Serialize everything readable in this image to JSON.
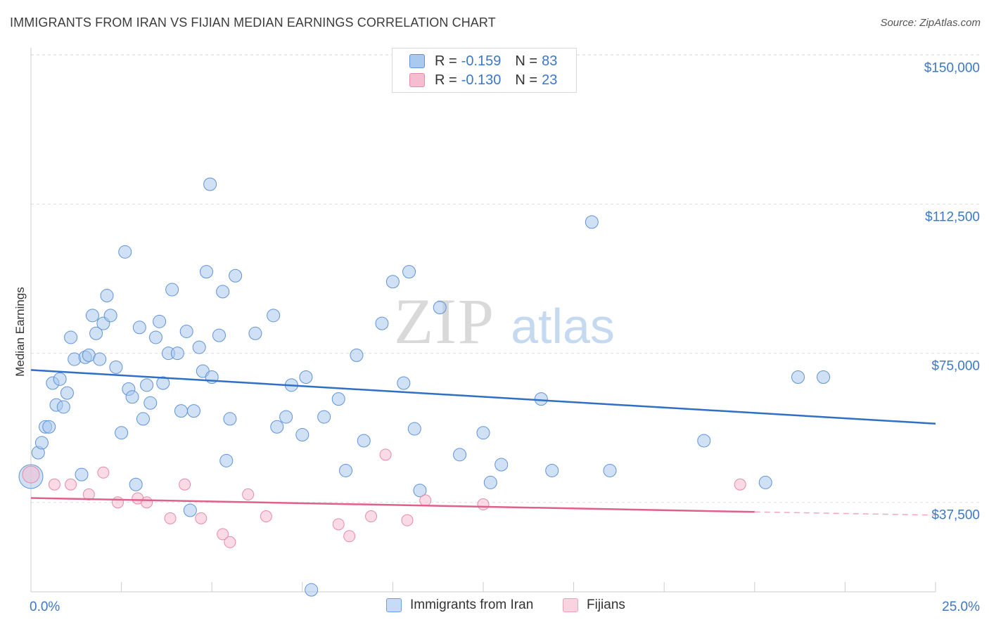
{
  "title": "IMMIGRANTS FROM IRAN VS FIJIAN MEDIAN EARNINGS CORRELATION CHART",
  "source": "Source: ZipAtlas.com",
  "watermark": {
    "zip": "ZIP",
    "atlas": "atlas"
  },
  "legend": {
    "r_label": "R =",
    "n_label": "N =",
    "rows": [
      {
        "r": "-0.159",
        "n": "83",
        "color": "#a9c9ef",
        "border": "#5f93d6"
      },
      {
        "r": "-0.130",
        "n": "23",
        "color": "#f6bdd0",
        "border": "#e58aab"
      }
    ]
  },
  "bottom_legend": [
    "Immigrants from Iran",
    "Fijians"
  ],
  "chart_data": {
    "type": "scatter",
    "ylabel": "Median Earnings",
    "xlim": [
      0,
      25
    ],
    "ylim": [
      15000,
      155000
    ],
    "x_tick_labels": [
      {
        "value": 0,
        "label": "0.0%"
      },
      {
        "value": 25,
        "label": "25.0%"
      }
    ],
    "y_ticks": [
      {
        "value": 37500,
        "label": "$37,500"
      },
      {
        "value": 75000,
        "label": "$75,000"
      },
      {
        "value": 112500,
        "label": "$112,500"
      },
      {
        "value": 150000,
        "label": "$150,000"
      }
    ],
    "series": [
      {
        "name": "Immigrants from Iran",
        "color": "#a9c9ef",
        "stroke": "#5f93d6",
        "trend": {
          "x0": 0,
          "y0": 70800,
          "x1": 25,
          "y1": 57300,
          "color": "#2f6fc4"
        },
        "points": [
          [
            0.0,
            44000
          ],
          [
            0.2,
            50000
          ],
          [
            0.3,
            52500
          ],
          [
            0.4,
            56500
          ],
          [
            0.5,
            56500
          ],
          [
            0.6,
            67500
          ],
          [
            0.7,
            62000
          ],
          [
            0.8,
            68500
          ],
          [
            0.9,
            61500
          ],
          [
            1.0,
            65000
          ],
          [
            1.1,
            79000
          ],
          [
            1.2,
            73500
          ],
          [
            1.4,
            44500
          ],
          [
            1.5,
            74000
          ],
          [
            1.6,
            74500
          ],
          [
            1.7,
            84500
          ],
          [
            1.8,
            80000
          ],
          [
            1.9,
            73500
          ],
          [
            2.0,
            82500
          ],
          [
            2.1,
            89500
          ],
          [
            2.2,
            84500
          ],
          [
            2.35,
            71500
          ],
          [
            2.5,
            55000
          ],
          [
            2.6,
            100500
          ],
          [
            2.7,
            66000
          ],
          [
            2.8,
            64000
          ],
          [
            2.9,
            42000
          ],
          [
            3.0,
            81500
          ],
          [
            3.1,
            58500
          ],
          [
            3.2,
            67000
          ],
          [
            3.3,
            62500
          ],
          [
            3.45,
            79000
          ],
          [
            3.55,
            83000
          ],
          [
            3.65,
            67500
          ],
          [
            3.8,
            75000
          ],
          [
            3.9,
            91000
          ],
          [
            4.05,
            75000
          ],
          [
            4.15,
            60500
          ],
          [
            4.3,
            80500
          ],
          [
            4.4,
            35500
          ],
          [
            4.5,
            60500
          ],
          [
            4.65,
            76500
          ],
          [
            4.75,
            70500
          ],
          [
            4.85,
            95500
          ],
          [
            4.95,
            117500
          ],
          [
            5.0,
            69000
          ],
          [
            5.2,
            79500
          ],
          [
            5.3,
            90500
          ],
          [
            5.4,
            48000
          ],
          [
            5.5,
            58500
          ],
          [
            5.65,
            94500
          ],
          [
            6.2,
            80000
          ],
          [
            6.7,
            84500
          ],
          [
            6.8,
            56500
          ],
          [
            7.05,
            59000
          ],
          [
            7.2,
            67000
          ],
          [
            7.5,
            54500
          ],
          [
            7.6,
            69000
          ],
          [
            8.1,
            59000
          ],
          [
            8.5,
            63500
          ],
          [
            8.7,
            45500
          ],
          [
            9.0,
            74500
          ],
          [
            9.2,
            53000
          ],
          [
            9.7,
            82500
          ],
          [
            10.0,
            93000
          ],
          [
            10.3,
            67500
          ],
          [
            10.45,
            95500
          ],
          [
            10.6,
            56000
          ],
          [
            10.75,
            40500
          ],
          [
            11.3,
            86500
          ],
          [
            11.85,
            49500
          ],
          [
            12.5,
            55000
          ],
          [
            12.7,
            42500
          ],
          [
            13.0,
            47000
          ],
          [
            14.1,
            63500
          ],
          [
            14.4,
            45500
          ],
          [
            15.5,
            108000
          ],
          [
            16.0,
            45500
          ],
          [
            18.6,
            53000
          ],
          [
            20.3,
            42500
          ],
          [
            21.2,
            69000
          ],
          [
            21.9,
            69000
          ],
          [
            7.75,
            15500
          ]
        ]
      },
      {
        "name": "Fijians",
        "color": "#f6bdd0",
        "stroke": "#e58aab",
        "trend": {
          "x0": 0,
          "y0": 38600,
          "x1": 20,
          "y1": 35100,
          "x2": 25,
          "y2": 34300,
          "color": "#e0608c"
        },
        "points": [
          [
            0.0,
            44500
          ],
          [
            0.65,
            42000
          ],
          [
            1.1,
            42000
          ],
          [
            1.6,
            39500
          ],
          [
            2.0,
            45000
          ],
          [
            2.4,
            37500
          ],
          [
            2.95,
            38500
          ],
          [
            3.2,
            37500
          ],
          [
            3.85,
            33500
          ],
          [
            4.25,
            42000
          ],
          [
            4.7,
            33500
          ],
          [
            5.3,
            29500
          ],
          [
            5.5,
            27500
          ],
          [
            6.0,
            39500
          ],
          [
            6.5,
            34000
          ],
          [
            8.5,
            32000
          ],
          [
            8.8,
            29000
          ],
          [
            9.4,
            34000
          ],
          [
            9.8,
            49500
          ],
          [
            10.4,
            33000
          ],
          [
            10.9,
            38000
          ],
          [
            12.5,
            37000
          ],
          [
            19.6,
            42000
          ]
        ]
      }
    ]
  }
}
